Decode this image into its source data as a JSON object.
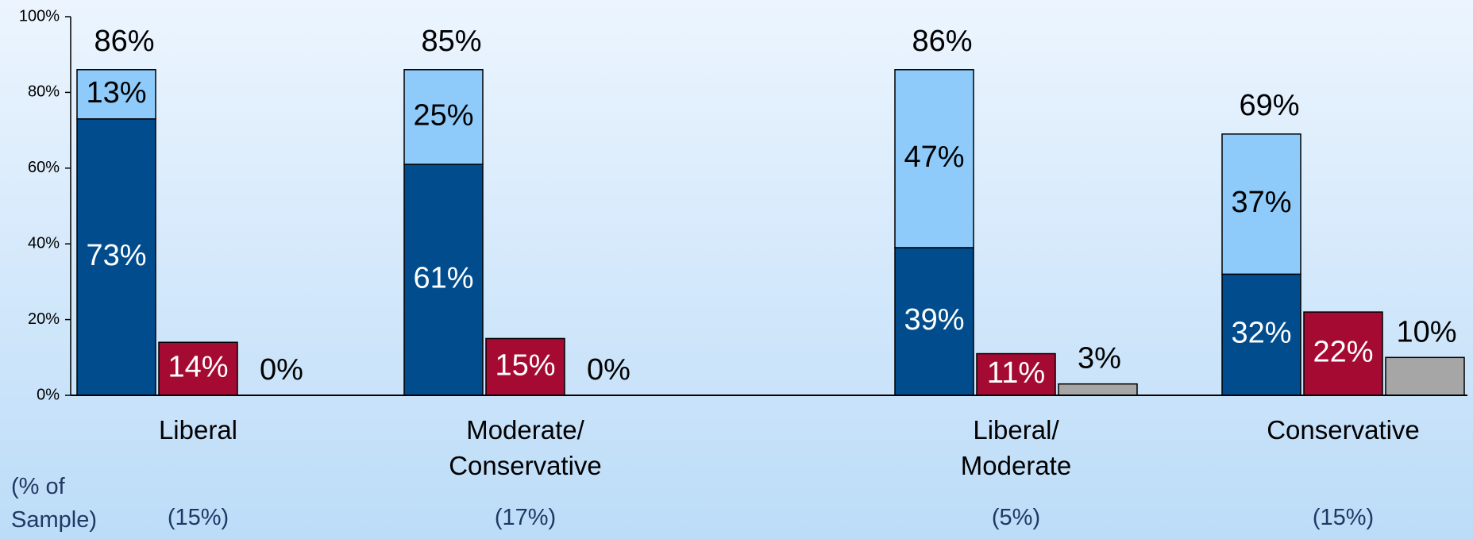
{
  "chart_data": {
    "type": "bar",
    "categories": [
      "Liberal",
      "Moderate/ Conservative",
      "Liberal/ Moderate",
      "Conservative"
    ],
    "series": [
      {
        "color": "#004c8c",
        "values": [
          73,
          61,
          39,
          32
        ],
        "value_labels": [
          "73%",
          "61%",
          "39%",
          "32%"
        ],
        "stack": "a"
      },
      {
        "color": "#8ecbfb",
        "values": [
          13,
          25,
          47,
          37
        ],
        "value_labels": [
          "13%",
          "25%",
          "47%",
          "37%"
        ],
        "stack": "a"
      },
      {
        "color": "#a50b32",
        "values": [
          14,
          15,
          11,
          22
        ],
        "value_labels": [
          "14%",
          "15%",
          "11%",
          "22%"
        ],
        "stack": "b"
      },
      {
        "color": "#a6a6a6",
        "values": [
          0,
          0,
          3,
          10
        ],
        "value_labels": [
          "0%",
          "0%",
          "3%",
          "10%"
        ],
        "stack": "c"
      }
    ],
    "totals": [
      86,
      85,
      86,
      69
    ],
    "total_labels": [
      "86%",
      "85%",
      "86%",
      "69%"
    ],
    "sample_label": "(% of Sample)",
    "samples": [
      "(15%)",
      "(17%)",
      "(5%)",
      "(15%)"
    ],
    "ylim": [
      0,
      100
    ],
    "yticks": [
      {
        "value": 0,
        "label": "0%"
      },
      {
        "value": 20,
        "label": "20%"
      },
      {
        "value": 40,
        "label": "40%"
      },
      {
        "value": 60,
        "label": "60%"
      },
      {
        "value": 80,
        "label": "80%"
      },
      {
        "value": 100,
        "label": "100%"
      }
    ]
  }
}
